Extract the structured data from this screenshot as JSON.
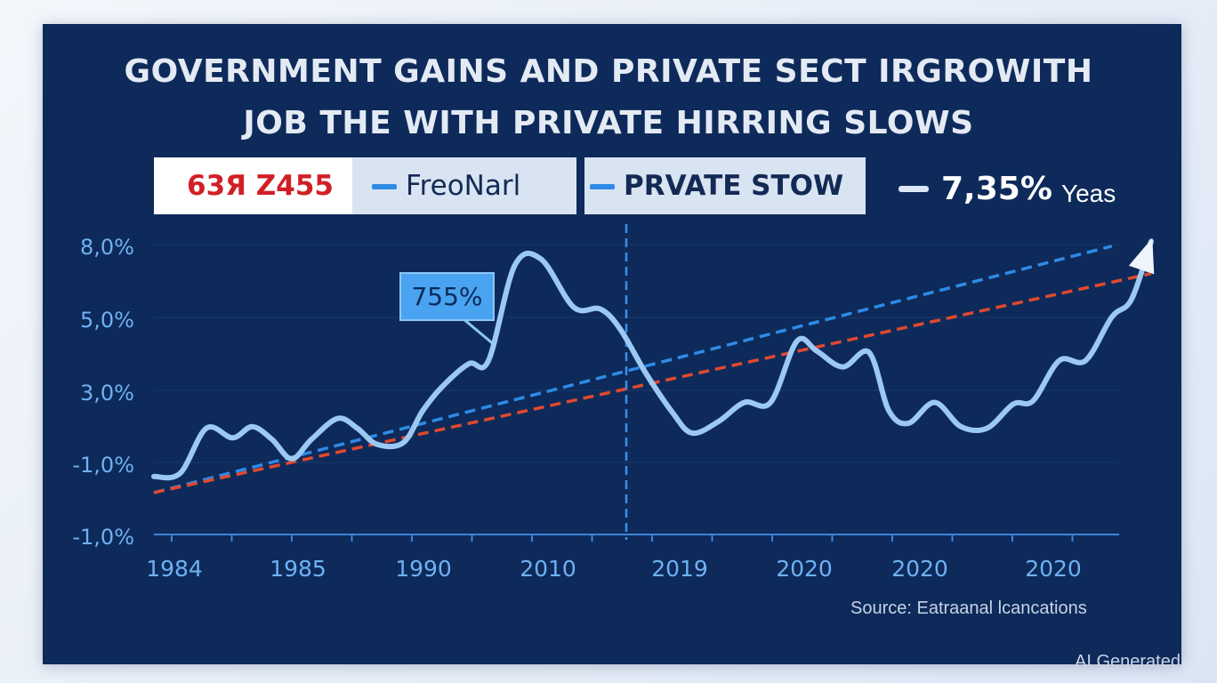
{
  "title_lines": [
    "GOVERNMENT GAINS AND PRIVATE SECT IRGROWITH",
    "JOB THE WITH PRIVATE HIRRING SLOWS"
  ],
  "legend": {
    "item1": "63Я Z455",
    "item2": "FreoNarl",
    "item3": "PRVATE STOW",
    "item4_value": "7,35%",
    "item4_unit": "Yeas"
  },
  "callout": "755%",
  "source": "Source: Eatraanal lcancations",
  "watermark": "AI Generated",
  "colors": {
    "background": "#0d2a5a",
    "main_line": "#9cc8f4",
    "trend_blue": "#2f8ae6",
    "trend_red": "#e0492f",
    "axis_text": "#6fb1f2"
  },
  "chart_data": {
    "type": "line",
    "title": "GOVERNMENT GAINS AND PRIVATE SECT IRGROWITH JOB THE WITH PRIVATE HIRRING SLOWS",
    "ytick_labels": [
      "8,0%",
      "5,0%",
      "3,0%",
      "-1,0%",
      "-1,0%"
    ],
    "xtick_labels": [
      "1984",
      "1985",
      "1990",
      "2010",
      "2019",
      "2020",
      "2020",
      "2020"
    ],
    "y_range": [
      -1,
      8
    ],
    "x_index_range": [
      -0.1,
      7.5
    ],
    "grid": "horizontal",
    "legend_placement": "top",
    "series": [
      {
        "style": "solid",
        "x": [
          -0.1,
          0.1,
          0.3,
          0.5,
          0.65,
          0.8,
          0.95,
          1.1,
          1.3,
          1.45,
          1.6,
          1.8,
          1.95,
          2.1,
          2.3,
          2.45,
          2.65,
          2.85,
          3.1,
          3.3,
          3.45,
          3.65,
          3.85,
          4.0,
          4.2,
          4.4,
          4.6,
          4.8,
          4.95,
          5.15,
          5.35,
          5.5,
          5.65,
          5.85,
          6.05,
          6.25,
          6.45,
          6.6,
          6.8,
          7.0,
          7.2,
          7.35,
          7.5
        ],
        "y": [
          0.8,
          0.9,
          2.3,
          2.0,
          2.35,
          1.95,
          1.35,
          1.95,
          2.6,
          2.3,
          1.8,
          1.85,
          2.85,
          3.6,
          4.3,
          4.4,
          7.35,
          7.55,
          6.05,
          6.0,
          5.4,
          4.0,
          2.8,
          2.15,
          2.5,
          3.1,
          3.1,
          5.0,
          4.7,
          4.2,
          4.65,
          2.85,
          2.45,
          3.1,
          2.35,
          2.3,
          3.05,
          3.15,
          4.4,
          4.4,
          5.75,
          6.3,
          8.1
        ]
      },
      {
        "style": "dashed",
        "color": "blue",
        "x": [
          -0.1,
          7.2
        ],
        "y": [
          0.3,
          7.95
        ]
      },
      {
        "style": "dashed",
        "color": "red",
        "x": [
          -0.1,
          7.5
        ],
        "y": [
          0.3,
          7.1
        ]
      }
    ],
    "annotations": [
      {
        "type": "vertical-dashed-line",
        "x": 3.5
      },
      {
        "type": "label",
        "text": "755%"
      }
    ]
  }
}
